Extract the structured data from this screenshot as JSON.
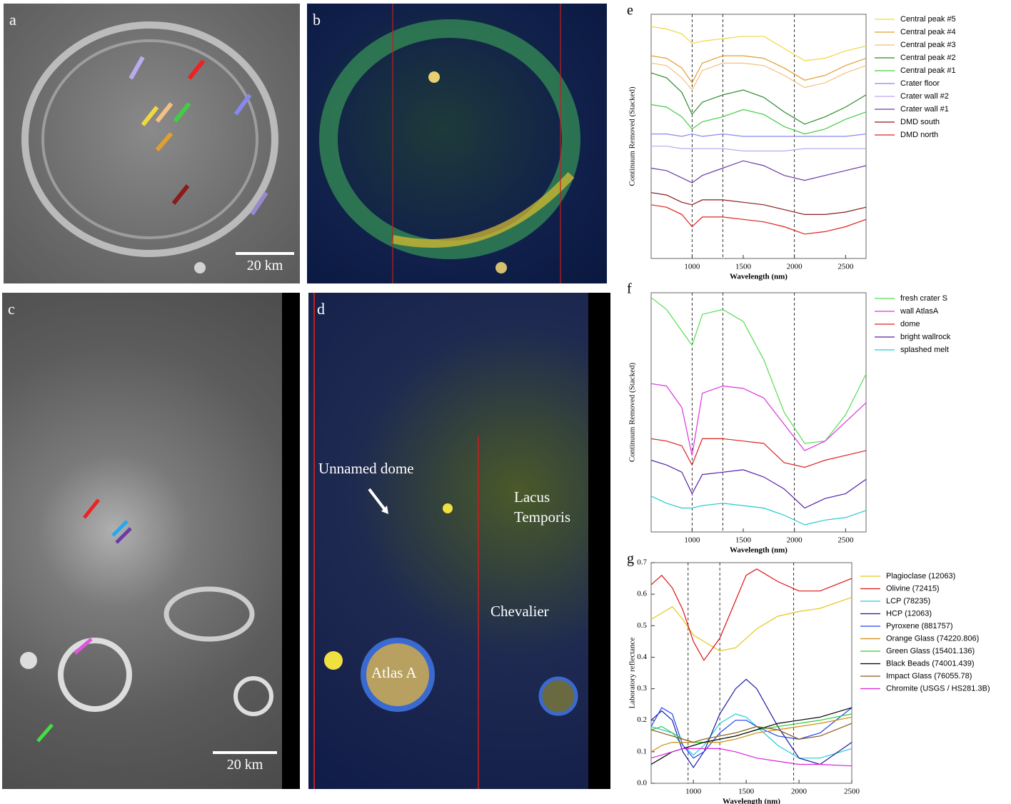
{
  "panels": [
    {
      "letter": "a",
      "scale_bar": "20 km"
    },
    {
      "letter": "b"
    },
    {
      "letter": "c",
      "scale_bar": "20 km"
    },
    {
      "letter": "d",
      "annotations": [
        "Unnamed dome",
        "Lacus Temporis",
        "Chevalier",
        "Atlas A"
      ]
    }
  ],
  "chart_data": [
    {
      "type": "line",
      "panel_label": "e",
      "x_label": "Wavelength (nm)",
      "y_label": "Continuum Removed (Stacked)",
      "x": [
        600,
        750,
        900,
        1000,
        1100,
        1300,
        1500,
        1700,
        1900,
        2100,
        2300,
        2500,
        2700
      ],
      "xlim": [
        600,
        2700
      ],
      "xticks": [
        1000,
        1500,
        2000,
        2500
      ],
      "ylim": [
        0,
        10
      ],
      "vlines": [
        1000,
        1300,
        2000
      ],
      "legend": "right",
      "series": [
        {
          "name": "Central peak #5",
          "color": "#f0d840",
          "values": [
            9.5,
            9.4,
            9.2,
            8.8,
            8.9,
            9.0,
            9.1,
            9.1,
            8.6,
            8.1,
            8.2,
            8.5,
            8.7
          ]
        },
        {
          "name": "Central peak #4",
          "color": "#e0a030",
          "values": [
            8.3,
            8.2,
            7.8,
            7.2,
            8.0,
            8.3,
            8.3,
            8.2,
            7.8,
            7.3,
            7.5,
            7.9,
            8.2
          ]
        },
        {
          "name": "Central peak #3",
          "color": "#f2c080",
          "values": [
            8.0,
            7.9,
            7.4,
            6.9,
            7.7,
            8.0,
            8.0,
            7.9,
            7.5,
            7.0,
            7.2,
            7.6,
            7.9
          ]
        },
        {
          "name": "Central peak #2",
          "color": "#2a8a2a",
          "values": [
            7.6,
            7.4,
            6.8,
            5.9,
            6.4,
            6.7,
            6.9,
            6.6,
            6.0,
            5.5,
            5.8,
            6.2,
            6.7
          ]
        },
        {
          "name": "Central peak #1",
          "color": "#44cc44",
          "values": [
            6.3,
            6.2,
            5.8,
            5.3,
            5.6,
            5.8,
            6.1,
            5.9,
            5.4,
            5.1,
            5.3,
            5.7,
            6.0
          ]
        },
        {
          "name": "Crater floor",
          "color": "#8888ee",
          "values": [
            5.1,
            5.1,
            5.0,
            5.1,
            5.0,
            5.1,
            5.0,
            5.0,
            5.0,
            5.0,
            5.0,
            5.0,
            5.1
          ]
        },
        {
          "name": "Crater wall #2",
          "color": "#bbaaee",
          "values": [
            4.6,
            4.6,
            4.5,
            4.5,
            4.5,
            4.5,
            4.4,
            4.4,
            4.4,
            4.5,
            4.5,
            4.5,
            4.5
          ]
        },
        {
          "name": "Crater wall #1",
          "color": "#6a3aa8",
          "values": [
            3.7,
            3.6,
            3.3,
            3.1,
            3.4,
            3.7,
            4.0,
            3.8,
            3.4,
            3.2,
            3.4,
            3.6,
            3.8
          ]
        },
        {
          "name": "DMD south",
          "color": "#8b1a1a",
          "values": [
            2.7,
            2.6,
            2.3,
            2.2,
            2.4,
            2.4,
            2.3,
            2.2,
            2.0,
            1.8,
            1.8,
            1.9,
            2.1
          ]
        },
        {
          "name": "DMD north",
          "color": "#e02020",
          "values": [
            2.2,
            2.1,
            1.8,
            1.3,
            1.7,
            1.7,
            1.6,
            1.5,
            1.3,
            1.0,
            1.1,
            1.3,
            1.6
          ]
        }
      ]
    },
    {
      "type": "line",
      "panel_label": "f",
      "x_label": "Wavelength (nm)",
      "y_label": "Continuum Removed (Stacked)",
      "x": [
        600,
        750,
        900,
        1000,
        1100,
        1300,
        1500,
        1700,
        1900,
        2100,
        2300,
        2500,
        2700
      ],
      "xlim": [
        600,
        2700
      ],
      "xticks": [
        1000,
        1500,
        2000,
        2500
      ],
      "ylim": [
        0,
        10
      ],
      "vlines": [
        1000,
        1300,
        2000
      ],
      "legend": "right",
      "series": [
        {
          "name": "fresh crater S",
          "color": "#55dd55",
          "values": [
            9.8,
            9.3,
            8.4,
            7.8,
            9.1,
            9.3,
            8.8,
            7.2,
            5.0,
            3.7,
            3.8,
            4.9,
            6.6
          ]
        },
        {
          "name": "wall AtlasA",
          "color": "#dd33dd",
          "values": [
            6.2,
            6.1,
            5.2,
            3.2,
            5.8,
            6.1,
            6.0,
            5.6,
            4.5,
            3.4,
            3.8,
            4.6,
            5.4
          ]
        },
        {
          "name": "dome",
          "color": "#dd2222",
          "values": [
            3.9,
            3.8,
            3.6,
            2.8,
            3.9,
            3.9,
            3.8,
            3.7,
            2.9,
            2.7,
            3.0,
            3.2,
            3.4
          ]
        },
        {
          "name": "bright wallrock",
          "color": "#5522aa",
          "values": [
            3.0,
            2.8,
            2.5,
            1.6,
            2.4,
            2.5,
            2.6,
            2.3,
            1.8,
            1.0,
            1.4,
            1.6,
            2.2
          ]
        },
        {
          "name": "splashed melt",
          "color": "#22cccc",
          "values": [
            1.5,
            1.2,
            1.0,
            1.0,
            1.1,
            1.2,
            1.1,
            1.0,
            0.7,
            0.3,
            0.5,
            0.6,
            0.9
          ]
        }
      ]
    },
    {
      "type": "line",
      "panel_label": "g",
      "x_label": "Wavelength (nm)",
      "y_label": "Laboratory reflectance",
      "x": [
        600,
        700,
        800,
        900,
        1000,
        1100,
        1250,
        1400,
        1500,
        1600,
        1800,
        2000,
        2200,
        2500
      ],
      "xlim": [
        600,
        2500
      ],
      "xticks": [
        1000,
        1500,
        2000,
        2500
      ],
      "ylim": [
        0,
        0.7
      ],
      "yticks": [
        {
          "value": 0,
          "label": "0.0"
        },
        0.1,
        0.2,
        0.3,
        0.4,
        0.5,
        0.6,
        0.7
      ],
      "vlines": [
        950,
        1250,
        1950
      ],
      "legend": "right",
      "series": [
        {
          "name": "Plagioclase (12063)",
          "color": "#e6c619",
          "values": [
            0.52,
            0.54,
            0.56,
            0.52,
            0.47,
            0.45,
            0.42,
            0.43,
            0.46,
            0.49,
            0.53,
            0.545,
            0.555,
            0.59
          ]
        },
        {
          "name": "Olivine (72415)",
          "color": "#dd1111",
          "values": [
            0.63,
            0.66,
            0.62,
            0.55,
            0.45,
            0.39,
            0.46,
            0.58,
            0.66,
            0.68,
            0.64,
            0.61,
            0.61,
            0.65
          ]
        },
        {
          "name": "LCP (78235)",
          "color": "#22ccdd",
          "values": [
            0.18,
            0.17,
            0.16,
            0.12,
            0.09,
            0.12,
            0.19,
            0.22,
            0.21,
            0.18,
            0.12,
            0.08,
            0.08,
            0.11
          ]
        },
        {
          "name": "HCP (12063)",
          "color": "#1a1a99",
          "values": [
            0.2,
            0.23,
            0.2,
            0.1,
            0.05,
            0.1,
            0.22,
            0.3,
            0.33,
            0.3,
            0.18,
            0.08,
            0.06,
            0.13
          ]
        },
        {
          "name": "Pyroxene (881757)",
          "color": "#2244ee",
          "values": [
            0.18,
            0.24,
            0.22,
            0.12,
            0.08,
            0.1,
            0.16,
            0.2,
            0.2,
            0.18,
            0.15,
            0.14,
            0.16,
            0.24
          ]
        },
        {
          "name": "Orange Glass (74220.806)",
          "color": "#d08a10",
          "values": [
            0.1,
            0.12,
            0.13,
            0.13,
            0.13,
            0.13,
            0.13,
            0.14,
            0.15,
            0.16,
            0.17,
            0.18,
            0.19,
            0.21
          ]
        },
        {
          "name": "Green Glass (15401.136)",
          "color": "#33cc33",
          "values": [
            0.17,
            0.18,
            0.16,
            0.14,
            0.13,
            0.13,
            0.14,
            0.15,
            0.16,
            0.17,
            0.18,
            0.19,
            0.2,
            0.22
          ]
        },
        {
          "name": "Black Beads (74001.439)",
          "color": "#000000",
          "values": [
            0.06,
            0.08,
            0.1,
            0.11,
            0.12,
            0.13,
            0.14,
            0.15,
            0.16,
            0.17,
            0.19,
            0.2,
            0.21,
            0.24
          ]
        },
        {
          "name": "Impact Glass (76055.78)",
          "color": "#8a5a1a",
          "values": [
            0.17,
            0.16,
            0.15,
            0.14,
            0.13,
            0.14,
            0.15,
            0.16,
            0.17,
            0.18,
            0.17,
            0.14,
            0.15,
            0.19
          ]
        },
        {
          "name": "Chromite (USGS / HS281.3B)",
          "color": "#dd22dd",
          "values": [
            0.08,
            0.09,
            0.1,
            0.11,
            0.11,
            0.11,
            0.11,
            0.1,
            0.09,
            0.08,
            0.07,
            0.06,
            0.06,
            0.055
          ]
        }
      ]
    }
  ]
}
